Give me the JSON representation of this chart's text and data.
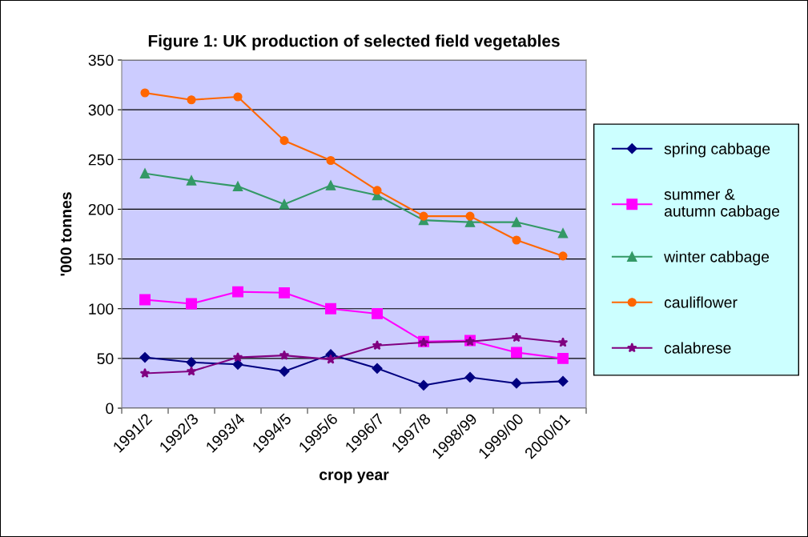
{
  "chart_data": {
    "type": "line",
    "title": "Figure 1: UK production of selected field vegetables",
    "xlabel": "crop year",
    "ylabel": "'000 tonnes",
    "categories": [
      "1991/2",
      "1992/3",
      "1993/4",
      "1994/5",
      "1995/6",
      "1996/7",
      "1997/8",
      "1998/99",
      "1999/00",
      "2000/01"
    ],
    "series": [
      {
        "name": "spring cabbage",
        "color": "#000080",
        "marker": "diamond",
        "values": [
          51,
          46,
          44,
          37,
          54,
          40,
          23,
          31,
          25,
          27
        ]
      },
      {
        "name": "summer &\nautumn cabbage",
        "color": "#ff00ff",
        "marker": "square",
        "values": [
          109,
          105,
          117,
          116,
          100,
          95,
          67,
          68,
          56,
          50
        ]
      },
      {
        "name": "winter cabbage",
        "color": "#339966",
        "marker": "triangle",
        "values": [
          236,
          229,
          223,
          205,
          224,
          214,
          189,
          187,
          187,
          176
        ]
      },
      {
        "name": "cauliflower",
        "color": "#ff6600",
        "marker": "circle",
        "values": [
          317,
          310,
          313,
          269,
          249,
          219,
          193,
          193,
          169,
          153
        ]
      },
      {
        "name": "calabrese",
        "color": "#800080",
        "marker": "star",
        "values": [
          35,
          37,
          51,
          53,
          49,
          63,
          66,
          67,
          71,
          66
        ]
      }
    ],
    "ylim": [
      0,
      350
    ],
    "yticks": [
      0,
      50,
      100,
      150,
      200,
      250,
      300,
      350
    ],
    "grid": "y",
    "legend": "right",
    "line_style": "solid"
  }
}
